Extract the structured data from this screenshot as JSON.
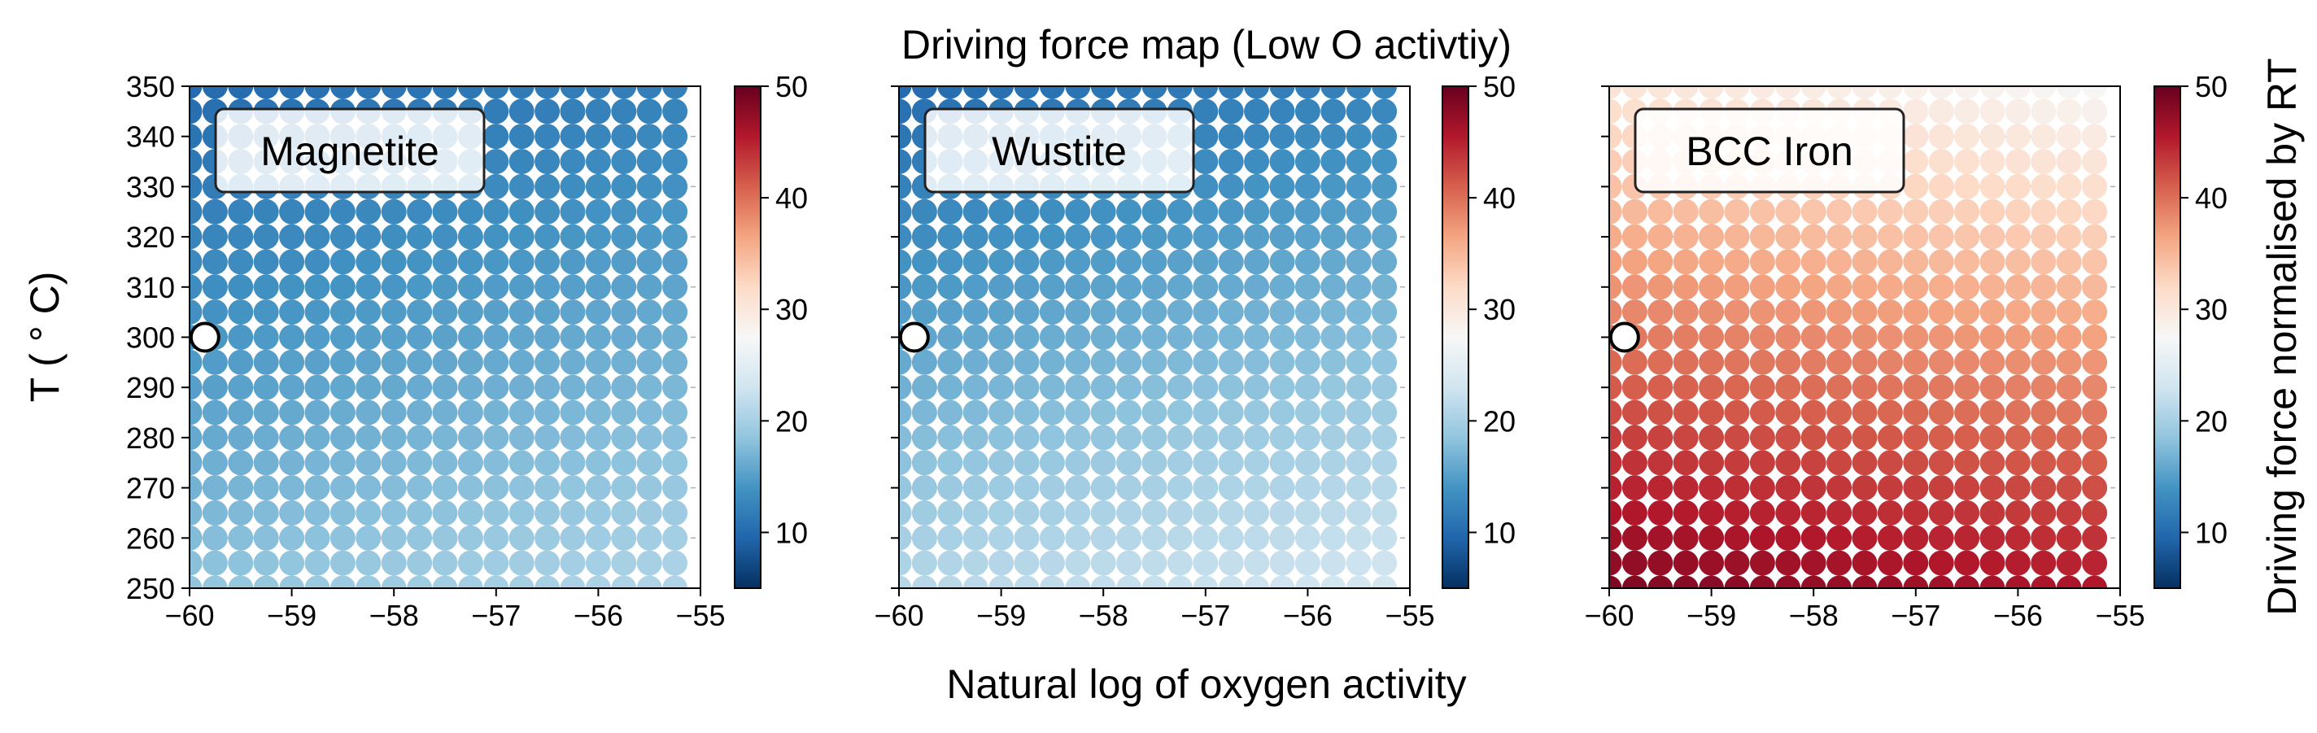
{
  "chart_data": {
    "type": "scatter",
    "title": "Driving force map (Low O activtiy)",
    "xlabel": "Natural log of oxygen activity",
    "ylabel": "T ($^\\circ$C)",
    "ylabel_display": "T ( ° C)",
    "colorbar_label": "Driving force normalised by RT",
    "colormap": "RdBu_r",
    "colormap_stops": [
      "#053061",
      "#2166ac",
      "#4393c3",
      "#92c5de",
      "#d1e5f0",
      "#f7f7f7",
      "#fddbc7",
      "#f4a582",
      "#d6604d",
      "#b2182b",
      "#67001f"
    ],
    "color_range": [
      5,
      50
    ],
    "colorbar_ticks": [
      "10",
      "20",
      "30",
      "40",
      "50"
    ],
    "xlim": [
      -60,
      -55
    ],
    "ylim": [
      250,
      350
    ],
    "x_ticks": [
      "−60",
      "−59",
      "−58",
      "−57",
      "−56",
      "−55"
    ],
    "y_ticks": [
      "250",
      "260",
      "270",
      "280",
      "290",
      "300",
      "310",
      "320",
      "330",
      "340",
      "350"
    ],
    "grid": true,
    "marker_grid": {
      "x_start": -60,
      "x_end": -55.25,
      "x_count": 20,
      "y_start": 250,
      "y_end": 350,
      "y_count": 21
    },
    "reference_point": {
      "x": -59.85,
      "y": 300
    },
    "panels": [
      {
        "label": "Magnetite",
        "value_model": {
          "base": 18.5,
          "slope_T": -0.085,
          "slope_x": 0.45
        }
      },
      {
        "label": "Wustite",
        "value_model": {
          "base": 21,
          "slope_T": -0.11,
          "slope_x": 0.5
        }
      },
      {
        "label": "BCC Iron",
        "value_model": {
          "base": 48.5,
          "slope_T": -0.18,
          "slope_x": -0.6
        }
      }
    ]
  }
}
